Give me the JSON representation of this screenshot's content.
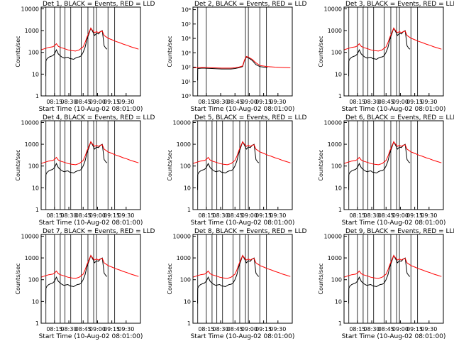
{
  "chart_data": {
    "type": "line",
    "layout": "3x3 grid of panels",
    "shared": {
      "xlabel": "Start Time (10-Aug-02 08:01:00)",
      "ylabel": "Counts/sec",
      "x_tick_labels": [
        "08:15",
        "08:30",
        "08:45",
        "09:00",
        "09:15",
        "09:30"
      ],
      "x_tick_minutes": [
        14,
        29,
        44,
        59,
        74,
        89
      ],
      "xlim": [
        0,
        104
      ],
      "y_scale": "log",
      "ylim": [
        1,
        12000
      ],
      "y_tick_labels": [
        "1",
        "10",
        "100",
        "1000",
        "10000"
      ],
      "y_tick_values": [
        1,
        10,
        100,
        1000,
        10000
      ],
      "line_colors": {
        "events": "#000000",
        "lld": "#ff0000"
      },
      "x_unit": "minutes after 08:01:00"
    },
    "panels": [
      {
        "title": "Det 1, BLACK = Events, RED = LLD",
        "vlines": [
          5,
          14,
          20,
          25,
          31,
          42,
          49,
          55,
          58,
          70,
          77
        ]
      },
      {
        "title": "Det 2, BLACK = Events, RED = LLD",
        "vlines": [
          5,
          14,
          55,
          58,
          70,
          77
        ],
        "y_scale": "log",
        "ylim": [
          1,
          1500000
        ],
        "y_tick_labels": [
          "10⁰",
          "10¹",
          "10²",
          "10³",
          "10⁴",
          "10⁵",
          "10⁶"
        ],
        "y_tick_values": [
          1,
          10,
          100,
          1000,
          10000,
          100000,
          1000000
        ]
      },
      {
        "title": "Det 3, BLACK = Events, RED = LLD",
        "vlines": [
          5,
          14,
          20,
          25,
          31,
          42,
          49,
          55,
          58,
          70,
          77
        ]
      },
      {
        "title": "Det 4, BLACK = Events, RED = LLD",
        "vlines": [
          5,
          14,
          20,
          25,
          31,
          42,
          49,
          55,
          58,
          70,
          77
        ]
      },
      {
        "title": "Det 5, BLACK = Events, RED = LLD",
        "vlines": [
          5,
          14,
          20,
          25,
          31,
          42,
          49,
          55,
          58,
          70,
          77
        ]
      },
      {
        "title": "Det 6, BLACK = Events, RED = LLD",
        "vlines": [
          5,
          14,
          20,
          25,
          31,
          42,
          49,
          55,
          58,
          70,
          77
        ]
      },
      {
        "title": "Det 7, BLACK = Events, RED = LLD",
        "vlines": [
          5,
          14,
          20,
          25,
          31,
          42,
          49,
          55,
          58,
          70,
          77
        ]
      },
      {
        "title": "Det 8, BLACK = Events, RED = LLD",
        "vlines": [
          5,
          14,
          20,
          25,
          31,
          42,
          49,
          55,
          58,
          70,
          77
        ]
      },
      {
        "title": "Det 9, BLACK = Events, RED = LLD",
        "vlines": [
          5,
          14,
          20,
          25,
          31,
          42,
          49,
          55,
          58,
          70,
          77
        ]
      }
    ],
    "series": [
      {
        "name": "Events",
        "color": "#000000",
        "x": [
          4.8,
          5.0,
          6,
          8,
          10,
          12,
          14,
          16,
          18,
          20,
          22,
          24,
          26,
          28,
          30,
          32,
          34,
          36,
          38,
          40,
          42,
          44,
          46,
          48,
          50,
          52,
          54,
          56,
          58,
          60,
          62,
          64,
          66,
          68,
          69
        ],
        "y": [
          8,
          40,
          50,
          60,
          65,
          70,
          85,
          130,
          85,
          70,
          60,
          55,
          58,
          60,
          52,
          50,
          48,
          55,
          60,
          62,
          70,
          100,
          170,
          400,
          700,
          1300,
          900,
          600,
          750,
          700,
          900,
          1000,
          200,
          150,
          140
        ]
      },
      {
        "name": "LLD",
        "color": "#ff0000",
        "x": [
          0,
          4,
          8,
          12,
          14,
          16,
          18,
          20,
          24,
          28,
          32,
          36,
          40,
          44,
          46,
          48,
          50,
          52,
          54,
          56,
          58,
          60,
          62,
          64,
          66,
          70,
          74,
          78,
          82,
          86,
          90,
          94,
          98,
          102
        ],
        "y": [
          130,
          150,
          170,
          180,
          200,
          250,
          190,
          170,
          150,
          130,
          120,
          115,
          130,
          180,
          280,
          500,
          800,
          1300,
          1000,
          800,
          900,
          800,
          900,
          950,
          600,
          450,
          380,
          320,
          280,
          240,
          210,
          180,
          160,
          140
        ]
      }
    ],
    "det2_series": [
      {
        "name": "Events",
        "color": "#000000",
        "x": [
          4.8,
          5.0,
          10,
          20,
          30,
          40,
          44,
          48,
          52,
          54,
          56,
          58,
          62,
          66,
          70,
          74,
          78
        ],
        "y": [
          12,
          80,
          85,
          80,
          75,
          75,
          80,
          90,
          110,
          300,
          500,
          450,
          300,
          150,
          110,
          100,
          95
        ]
      },
      {
        "name": "LLD",
        "color": "#ff0000",
        "x": [
          0,
          10,
          20,
          30,
          40,
          44,
          48,
          52,
          54,
          56,
          58,
          62,
          66,
          70,
          78,
          86,
          94,
          102
        ],
        "y": [
          90,
          95,
          90,
          85,
          85,
          90,
          100,
          120,
          320,
          550,
          500,
          350,
          200,
          130,
          110,
          100,
          95,
          90
        ]
      }
    ]
  }
}
